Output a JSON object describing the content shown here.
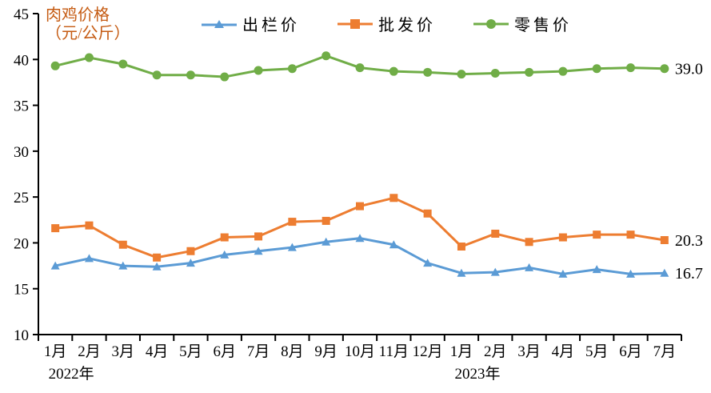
{
  "colors": {
    "blue": "#5B9BD5",
    "orange": "#ED7D31",
    "green": "#70AD47",
    "title": "#C55A11",
    "axis": "#000000",
    "background": "#FFFFFF"
  },
  "chart_data": {
    "type": "line",
    "title_line1": "肉鸡价格",
    "title_line2": "（元/公斤）",
    "ylabel": "元/公斤",
    "ylim": [
      10,
      45
    ],
    "yticks": [
      10,
      15,
      20,
      25,
      30,
      35,
      40,
      45
    ],
    "grid": false,
    "legend_position": "top",
    "categories": [
      "1月",
      "2月",
      "3月",
      "4月",
      "5月",
      "6月",
      "7月",
      "8月",
      "9月",
      "10月",
      "11月",
      "12月",
      "1月",
      "2月",
      "3月",
      "4月",
      "5月",
      "6月",
      "7月"
    ],
    "year_labels": [
      {
        "text": "2022年",
        "index": 0
      },
      {
        "text": "2023年",
        "index": 12
      }
    ],
    "series": [
      {
        "name": "出栏价",
        "marker": "triangle",
        "color": "#5B9BD5",
        "end_label": "16.7",
        "values": [
          17.5,
          18.3,
          17.5,
          17.4,
          17.8,
          18.7,
          19.1,
          19.5,
          20.1,
          20.5,
          19.8,
          17.8,
          16.7,
          16.8,
          17.3,
          16.6,
          17.1,
          16.6,
          16.7
        ]
      },
      {
        "name": "批发价",
        "marker": "square",
        "color": "#ED7D31",
        "end_label": "20.3",
        "values": [
          21.6,
          21.9,
          19.8,
          18.4,
          19.1,
          20.6,
          20.7,
          22.3,
          22.4,
          24.0,
          24.9,
          23.2,
          19.6,
          21.0,
          20.1,
          20.6,
          20.9,
          20.9,
          20.3
        ]
      },
      {
        "name": "零售价",
        "marker": "circle",
        "color": "#70AD47",
        "end_label": "39.0",
        "values": [
          39.3,
          40.2,
          39.5,
          38.3,
          38.3,
          38.1,
          38.8,
          39.0,
          40.4,
          39.1,
          38.7,
          38.6,
          38.4,
          38.5,
          38.6,
          38.7,
          39.0,
          39.1,
          39.0
        ]
      }
    ]
  }
}
